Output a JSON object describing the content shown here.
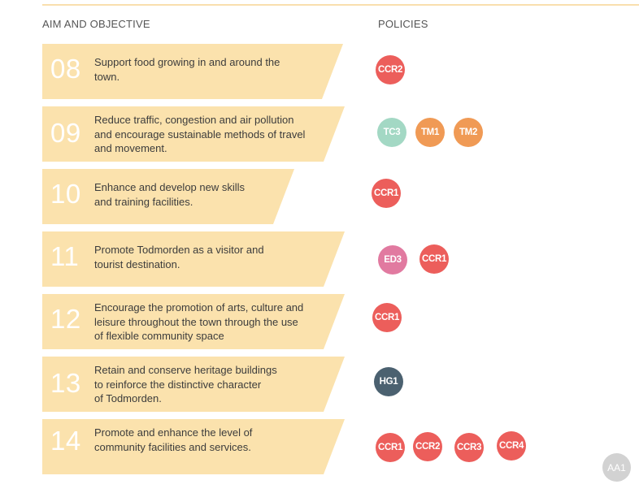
{
  "headers": {
    "aim": "AIM AND OBJECTIVE",
    "policies": "POLICIES"
  },
  "colors": {
    "banner": "#fbe2ad",
    "CCR": "#ec5e5b",
    "TC": "#a3d8c4",
    "TM": "#f09a55",
    "ED": "#e17aa0",
    "HG": "#4b6170",
    "AA": "#d2d2d2"
  },
  "rows": [
    {
      "num": "08",
      "lines": [
        "Support food growing in and around the",
        "town."
      ],
      "policies": [
        "CCR2"
      ]
    },
    {
      "num": "09",
      "lines": [
        "Reduce traffic, congestion and air pollution",
        "and encourage sustainable methods of travel",
        "and movement."
      ],
      "policies": [
        "TC3",
        "TM1",
        "TM2"
      ]
    },
    {
      "num": "10",
      "lines": [
        "Enhance and develop new skills",
        "and training facilities."
      ],
      "policies": [
        "CCR1"
      ]
    },
    {
      "num": "11",
      "lines": [
        "Promote Todmorden as a visitor and",
        "tourist destination."
      ],
      "policies": [
        "ED3",
        "CCR1"
      ]
    },
    {
      "num": "12",
      "lines": [
        "Encourage the promotion of arts, culture and",
        "leisure throughout the town through the use",
        "of flexible community space"
      ],
      "policies": [
        "CCR1"
      ]
    },
    {
      "num": "13",
      "lines": [
        "Retain and conserve heritage buildings",
        "to reinforce the distinctive character",
        "of Todmorden."
      ],
      "policies": [
        "HG1"
      ]
    },
    {
      "num": "14",
      "lines": [
        "Promote and enhance the level of",
        "community facilities and services."
      ],
      "policies": [
        "CCR1",
        "CCR2",
        "CCR3",
        "CCR4"
      ]
    }
  ],
  "corner_badge": "AA1"
}
